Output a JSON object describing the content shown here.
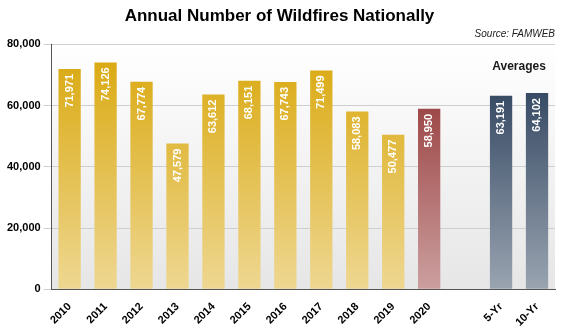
{
  "chart_data": {
    "type": "bar",
    "title": "Annual Number of Wildfires Nationally",
    "subtitle": "Source: FAMWEB",
    "categories": [
      "2010",
      "2011",
      "2012",
      "2013",
      "2014",
      "2015",
      "2016",
      "2017",
      "2018",
      "2019",
      "2020",
      null,
      "5-Yr",
      "10-Yr"
    ],
    "values": [
      71971,
      74126,
      67774,
      47579,
      63612,
      68151,
      67743,
      71499,
      58083,
      50477,
      58950,
      null,
      63191,
      64102
    ],
    "value_labels": [
      "71,971",
      "74,126",
      "67,774",
      "47,579",
      "63,612",
      "68,151",
      "67,743",
      "71,499",
      "58,083",
      "50,477",
      "58,950",
      null,
      "63,191",
      "64,102"
    ],
    "colors": [
      "#d9a70b",
      "#d9a70b",
      "#d9a70b",
      "#d9a70b",
      "#d9a70b",
      "#d9a70b",
      "#d9a70b",
      "#d9a70b",
      "#d9a70b",
      "#d9a70b",
      "#8e2a2a",
      null,
      "#1f3552",
      "#1f3552"
    ],
    "annotations": [
      "Averages"
    ],
    "ylim": [
      0,
      80000
    ],
    "yticks": [
      0,
      {
        "value": 20000,
        "label": "20,000"
      },
      {
        "value": 40000,
        "label": "40,000"
      },
      {
        "value": 60000,
        "label": "60,000"
      },
      {
        "value": 80000,
        "label": "80,000"
      }
    ],
    "grid": true,
    "data_labels": true
  }
}
